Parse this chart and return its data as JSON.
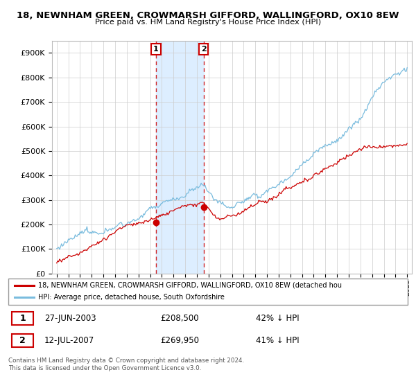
{
  "title_line1": "18, NEWNHAM GREEN, CROWMARSH GIFFORD, WALLINGFORD, OX10 8EW",
  "title_line2": "Price paid vs. HM Land Registry's House Price Index (HPI)",
  "ylim": [
    0,
    950000
  ],
  "yticks": [
    0,
    100000,
    200000,
    300000,
    400000,
    500000,
    600000,
    700000,
    800000,
    900000
  ],
  "ytick_labels": [
    "£0",
    "£100K",
    "£200K",
    "£300K",
    "£400K",
    "£500K",
    "£600K",
    "£700K",
    "£800K",
    "£900K"
  ],
  "hpi_color": "#7abcde",
  "price_color": "#cc0000",
  "sale1_year": 2003.5,
  "sale1_price": 208500,
  "sale2_year": 2007.58,
  "sale2_price": 269950,
  "legend_line1": "18, NEWNHAM GREEN, CROWMARSH GIFFORD, WALLINGFORD, OX10 8EW (detached hou",
  "legend_line2": "HPI: Average price, detached house, South Oxfordshire",
  "sale1_date": "27-JUN-2003",
  "sale1_price_str": "£208,500",
  "sale1_hpi": "42% ↓ HPI",
  "sale2_date": "12-JUL-2007",
  "sale2_price_str": "£269,950",
  "sale2_hpi": "41% ↓ HPI",
  "footer": "Contains HM Land Registry data © Crown copyright and database right 2024.\nThis data is licensed under the Open Government Licence v3.0.",
  "grid_color": "#cccccc",
  "span_color": "#ddeeff"
}
